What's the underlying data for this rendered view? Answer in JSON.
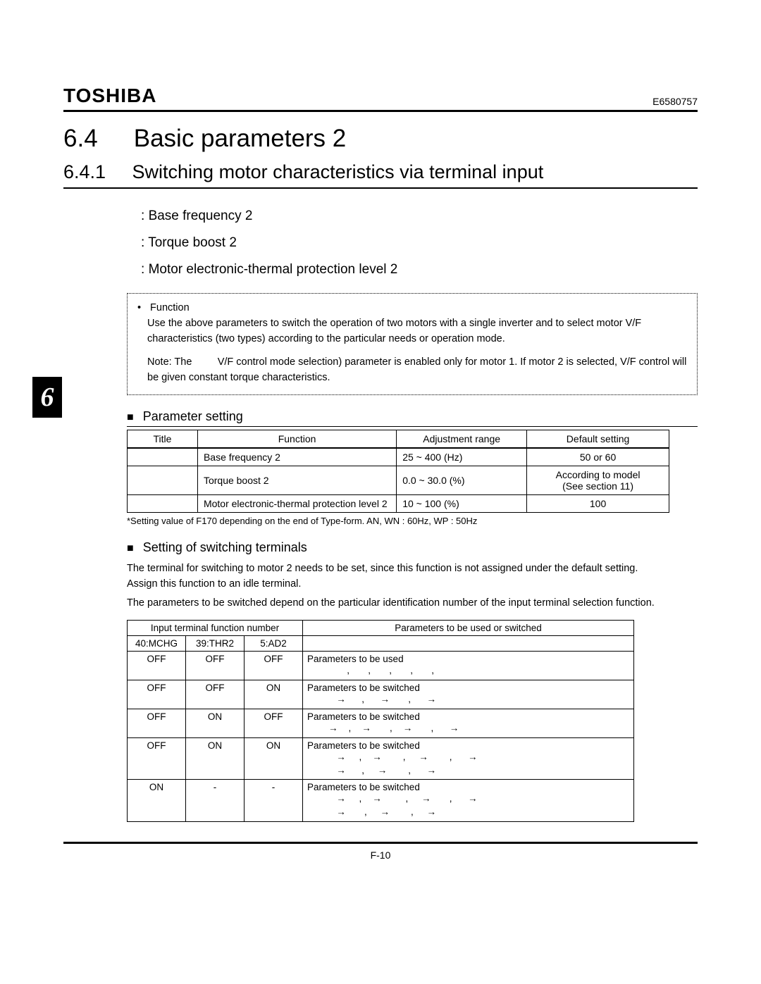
{
  "header": {
    "brand": "TOSHIBA",
    "docnum": "E6580757"
  },
  "section": {
    "num": "6.4",
    "title": "Basic parameters 2"
  },
  "subsection": {
    "num": "6.4.1",
    "title": "Switching motor characteristics via terminal input"
  },
  "param_list": {
    "p1": "Base frequency 2",
    "p2": "Torque boost 2",
    "p3": "Motor electronic-thermal protection level 2"
  },
  "funcbox": {
    "label": "Function",
    "text": "Use the above parameters to switch the operation of two motors with a single inverter and to select motor V/F characteristics (two types) according to the particular needs or operation mode.",
    "note_prefix": "Note:  The",
    "note_body": "V/F control mode selection) parameter is enabled only for motor 1.  If motor 2 is selected, V/F control will be given constant torque characteristics."
  },
  "tab_number": "6",
  "block1": {
    "heading": "Parameter setting",
    "head": {
      "title": "Title",
      "func": "Function",
      "adj": "Adjustment range",
      "def": "Default setting"
    },
    "rows": [
      {
        "title": "",
        "func": "Base frequency 2",
        "adj": "25 ~ 400 (Hz)",
        "def": "50 or 60"
      },
      {
        "title": "",
        "func": "Torque boost 2",
        "adj": "0.0 ~ 30.0 (%)",
        "def": "According to model\n(See section 11)"
      },
      {
        "title": "",
        "func": "Motor electronic-thermal protection level 2",
        "adj": "10 ~ 100 (%)",
        "def": "100"
      }
    ],
    "footnote": "*Setting value of F170 depending on the end of Type-form. AN, WN : 60Hz, WP : 50Hz"
  },
  "block2": {
    "heading": "Setting of switching terminals",
    "para1": "The terminal for switching to motor 2 needs to be set, since this function is not assigned under the default setting.  Assign this function to an idle terminal.",
    "para2": "The parameters to be switched depend on the particular identification number of the input terminal selection function."
  },
  "tbl2": {
    "head_group": "Input terminal function number",
    "head_right": "Parameters to be used or switched",
    "cols": {
      "c1": "40:MCHG",
      "c2": "39:THR2",
      "c3": "5:AD2"
    },
    "rows": [
      {
        "c1": "OFF",
        "c2": "OFF",
        "c3": "OFF",
        "label": "Parameters to be used",
        "arrows": "       ,       ,       ,       ,       ,"
      },
      {
        "c1": "OFF",
        "c2": "OFF",
        "c3": "ON",
        "label": "Parameters to be switched",
        "arrows": "   →      ,      →       ,      →"
      },
      {
        "c1": "OFF",
        "c2": "ON",
        "c3": "OFF",
        "label": "Parameters to be switched",
        "arrows": "→    ,    →       ,    →       ,      →"
      },
      {
        "c1": "OFF",
        "c2": "ON",
        "c3": "ON",
        "label": "Parameters to be switched",
        "arrows": "   →     ,    →        ,     →        ,      →\n   →      ,     →        ,      →"
      },
      {
        "c1": "ON",
        "c2": "-",
        "c3": "-",
        "label": "Parameters to be switched",
        "arrows": "   →     ,    →         ,     →       ,      →\n   →       ,     →        ,     →"
      }
    ]
  },
  "page_number": "F-10",
  "colors": {
    "text": "#000000",
    "background": "#ffffff"
  }
}
